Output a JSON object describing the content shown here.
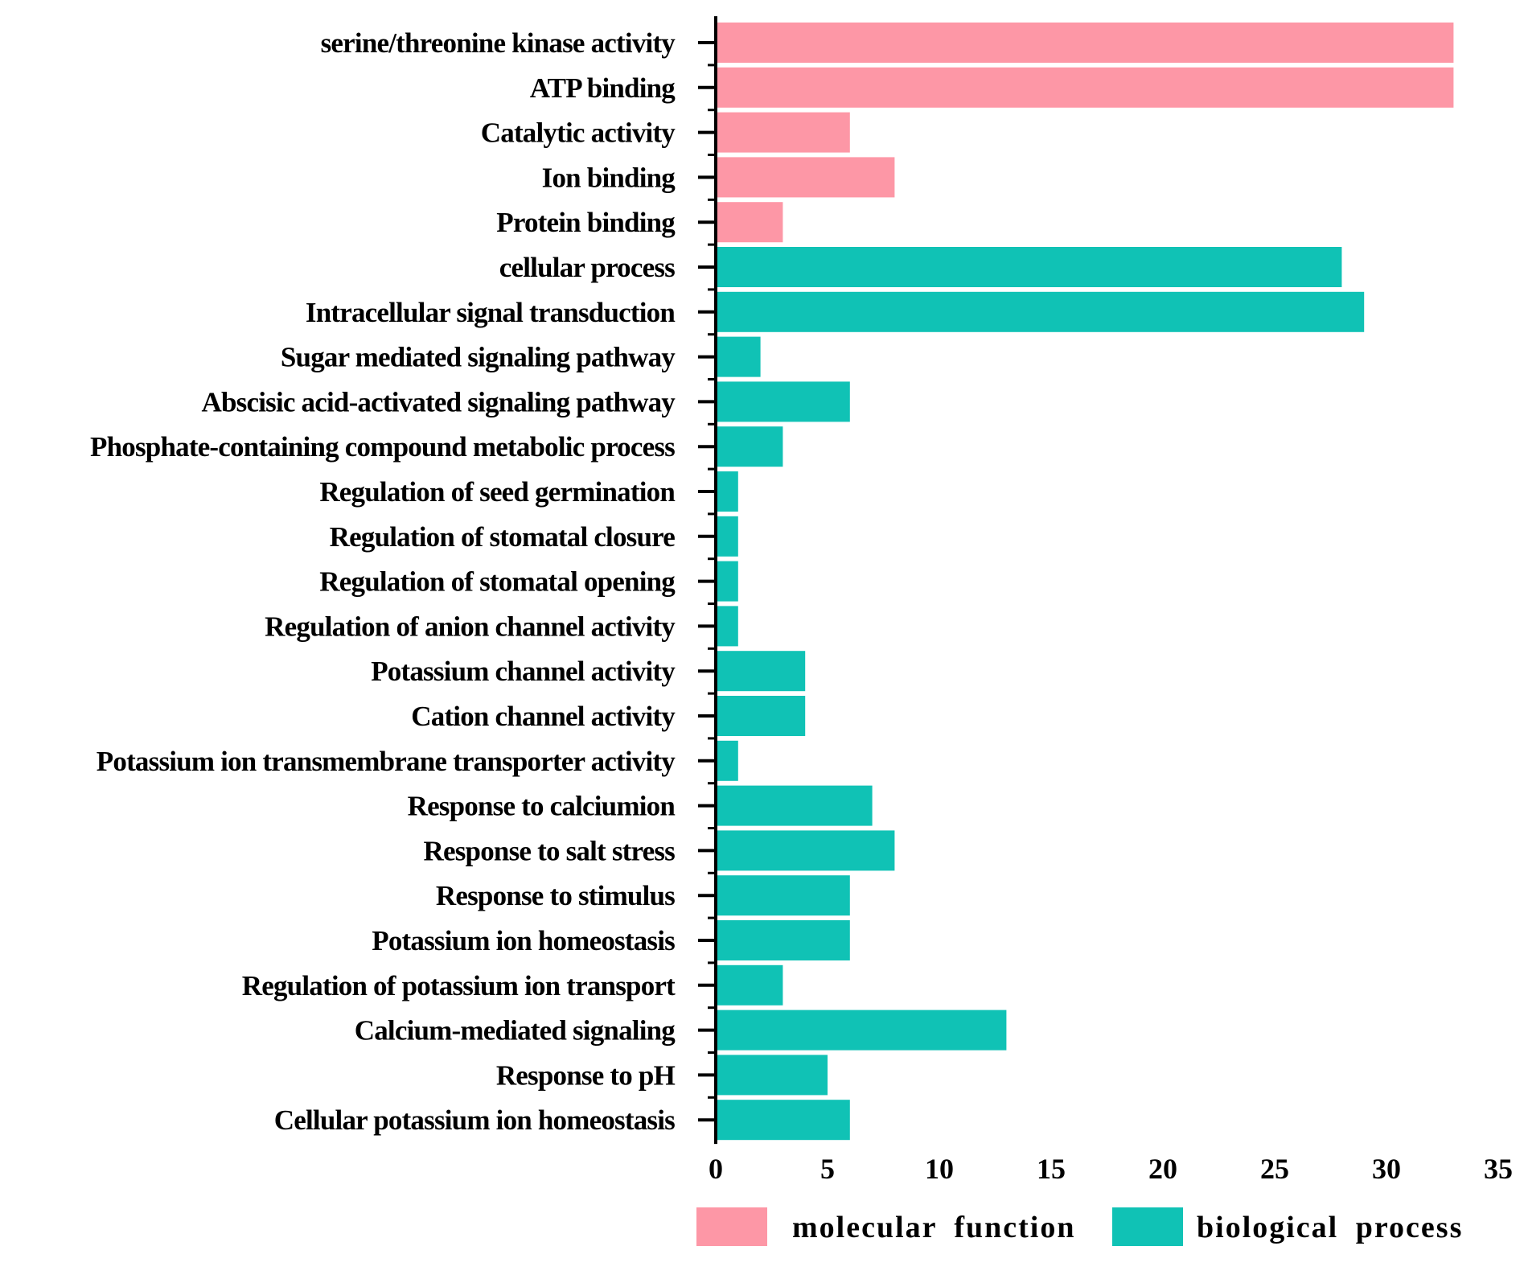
{
  "chart_data": {
    "type": "bar",
    "orientation": "horizontal",
    "title": "",
    "xlabel": "",
    "ylabel": "",
    "xlim": [
      0,
      35
    ],
    "x_ticks": [
      0,
      5,
      10,
      15,
      20,
      25,
      30,
      35
    ],
    "grid": false,
    "legend_position": "bottom",
    "groups": [
      {
        "name": "molecular  function",
        "color": "#fd97a6"
      },
      {
        "name": "biological    process",
        "color": "#10c2b5"
      }
    ],
    "categories": [
      "serine/threonine kinase activity",
      "ATP binding",
      "Catalytic activity",
      "Ion binding",
      "Protein binding",
      "cellular process",
      "Intracellular signal transduction",
      "Sugar mediated signaling pathway",
      "Abscisic acid-activated signaling pathway",
      "Phosphate-containing compound metabolic process",
      "Regulation of seed germination",
      "Regulation of stomatal closure",
      "Regulation of stomatal opening",
      "Regulation of anion channel activity",
      "Potassium channel activity",
      "Cation channel activity",
      "Potassium ion transmembrane transporter activity",
      "Response to calciumion",
      "Response to salt stress",
      "Response to stimulus",
      "Potassium ion homeostasis",
      "Regulation of potassium ion transport",
      "Calcium-mediated signaling",
      "Response to pH",
      "Cellular potassium ion homeostasis"
    ],
    "values": [
      33,
      33,
      6,
      8,
      3,
      28,
      29,
      2,
      6,
      3,
      1,
      1,
      1,
      1,
      4,
      4,
      1,
      7,
      8,
      6,
      6,
      3,
      13,
      5,
      6
    ],
    "group_index": [
      0,
      0,
      0,
      0,
      0,
      1,
      1,
      1,
      1,
      1,
      1,
      1,
      1,
      1,
      1,
      1,
      1,
      1,
      1,
      1,
      1,
      1,
      1,
      1,
      1
    ]
  }
}
